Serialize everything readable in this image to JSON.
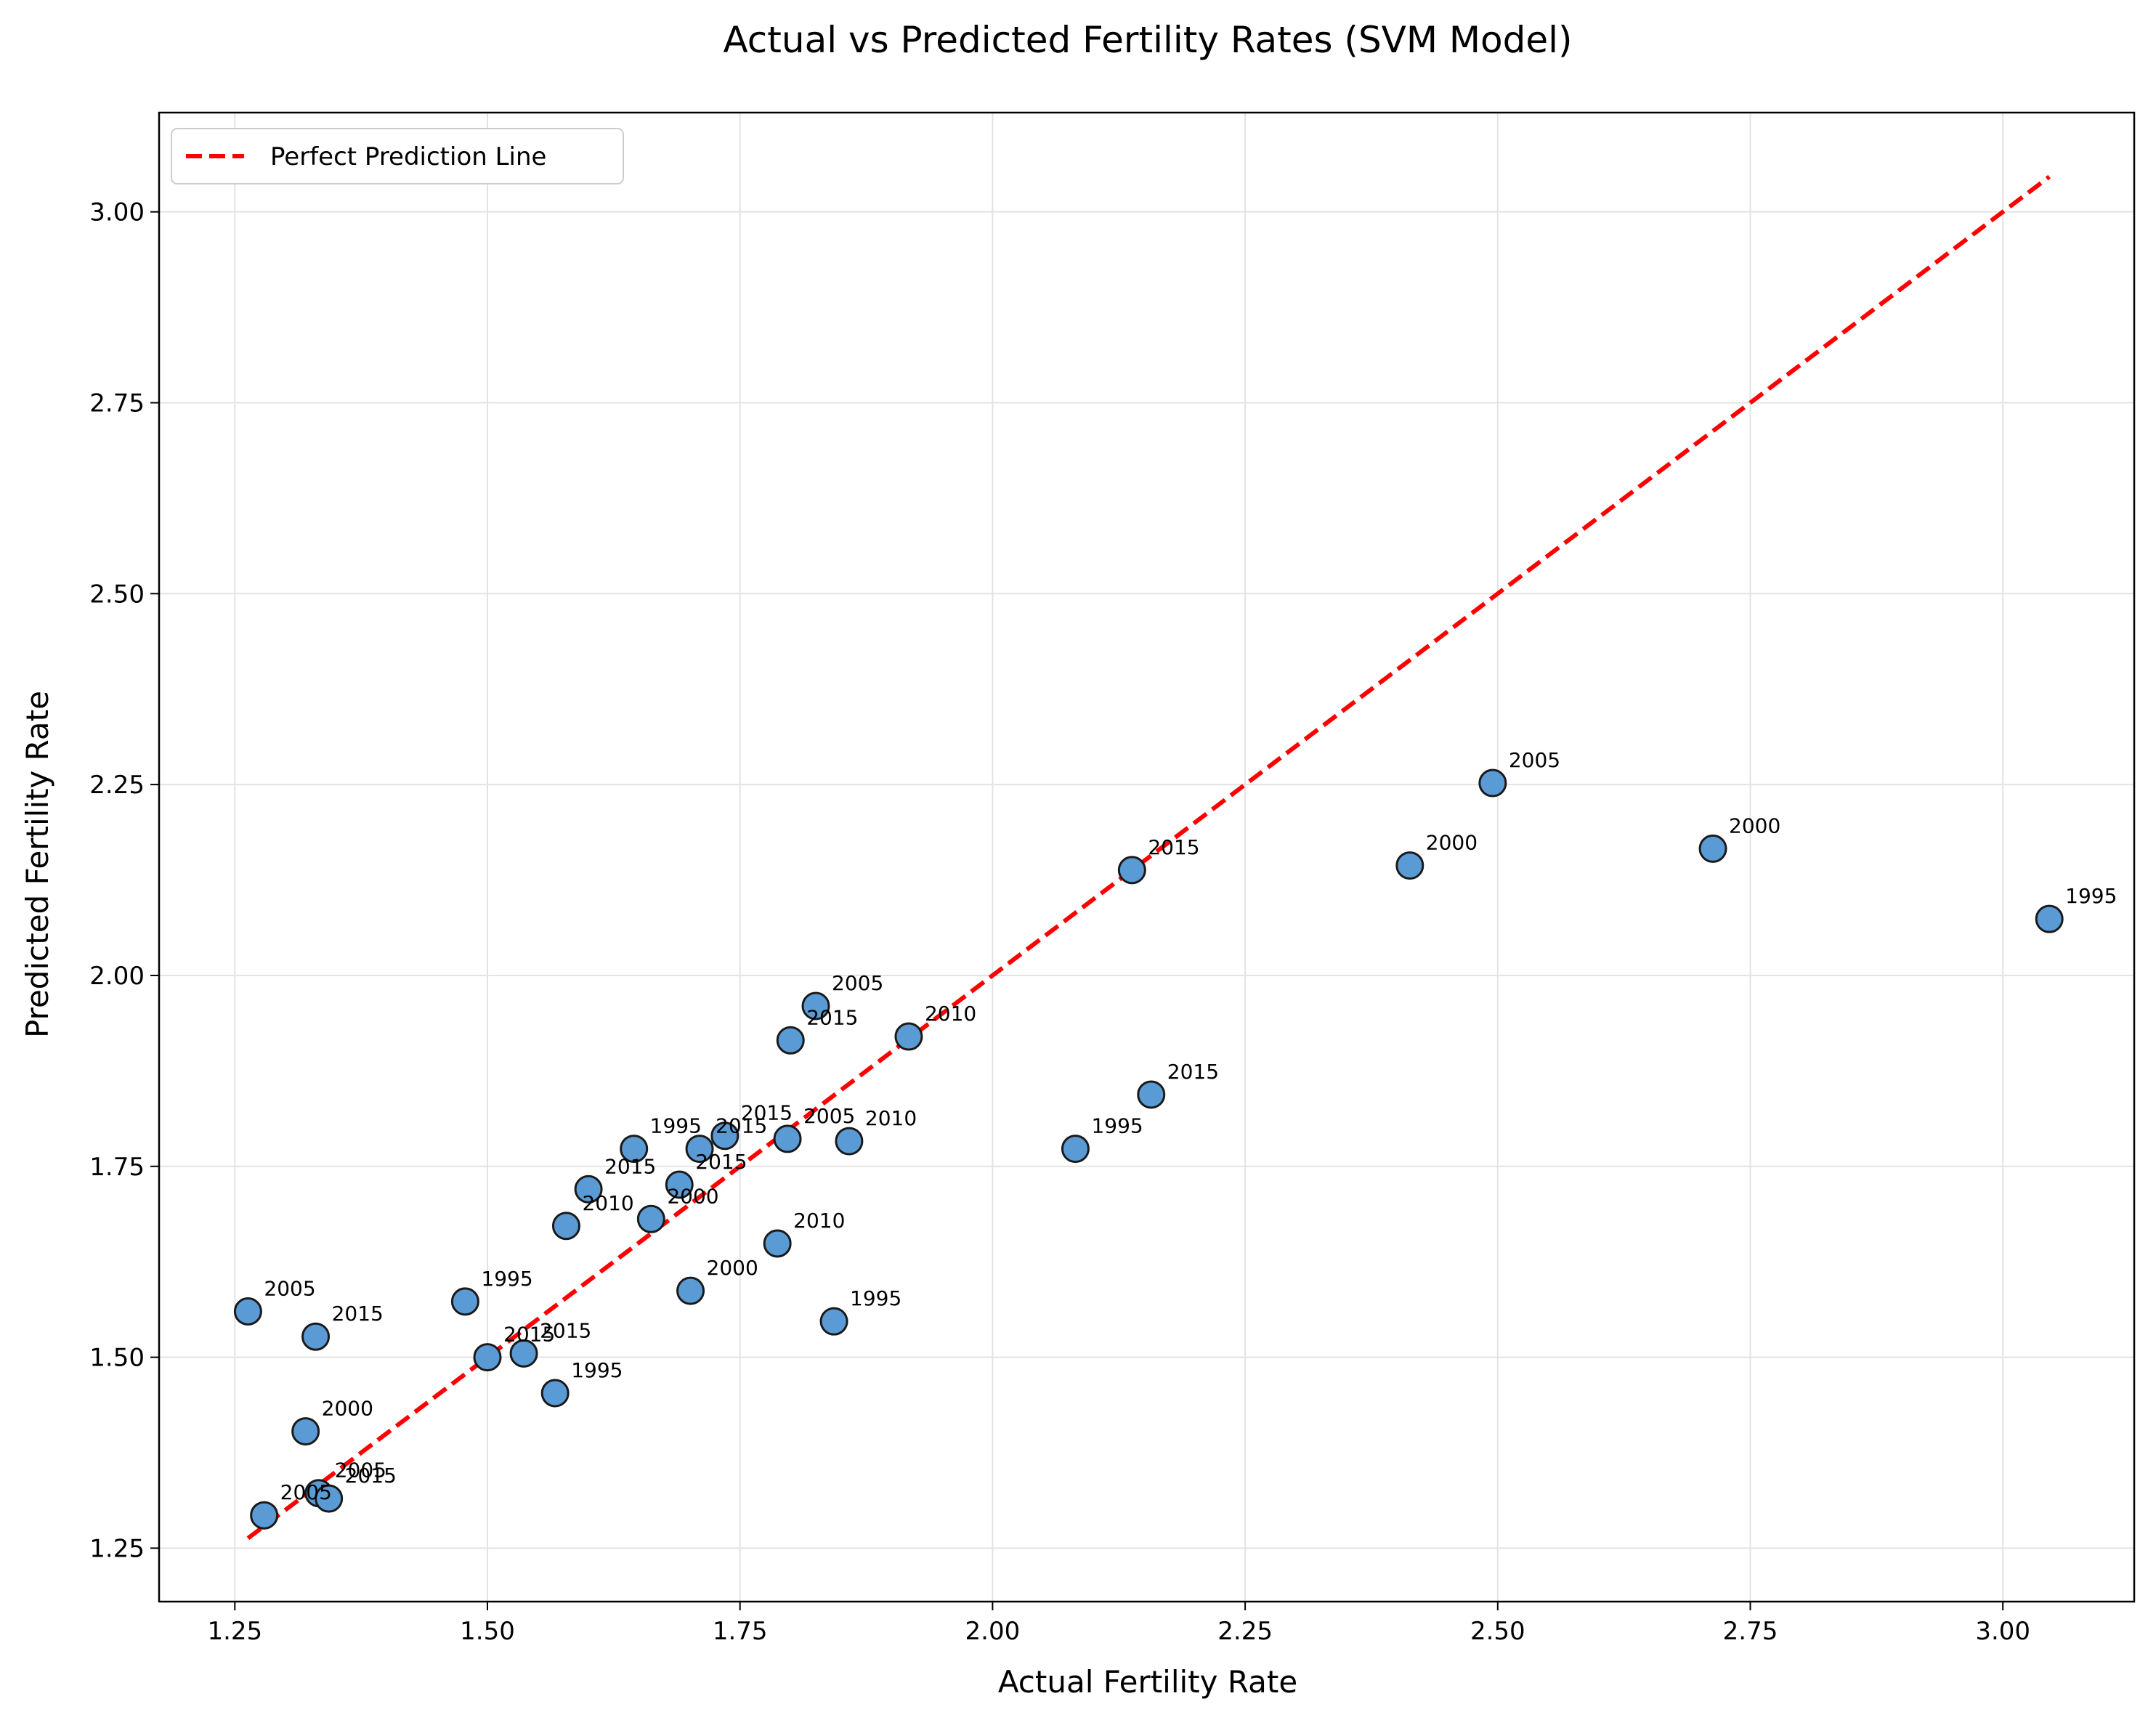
{
  "chart_data": {
    "type": "scatter",
    "title": "Actual vs Predicted Fertility Rates (SVM Model)",
    "xlabel": "Actual Fertility Rate",
    "ylabel": "Predicted Fertility Rate",
    "xlim": [
      1.175,
      3.13
    ],
    "ylim": [
      1.18,
      3.13
    ],
    "xticks": [
      1.25,
      1.5,
      1.75,
      2.0,
      2.25,
      2.5,
      2.75,
      3.0
    ],
    "xtick_labels": [
      "1.25",
      "1.50",
      "1.75",
      "2.00",
      "2.25",
      "2.50",
      "2.75",
      "3.00"
    ],
    "yticks": [
      1.25,
      1.5,
      1.75,
      2.0,
      2.25,
      2.5,
      2.75,
      3.0
    ],
    "ytick_labels": [
      "1.25",
      "1.50",
      "1.75",
      "2.00",
      "2.25",
      "2.50",
      "2.75",
      "3.00"
    ],
    "grid": true,
    "legend_position": "top-left",
    "legend": [
      "Perfect Prediction Line"
    ],
    "point_color": "#5b9bd5",
    "point_edge_color": "#1a1a1a",
    "line_color": "#ff0000",
    "perfect_line": {
      "name": "Perfect Prediction Line",
      "x": [
        1.263,
        3.046
      ],
      "y": [
        1.263,
        3.046
      ]
    },
    "points": [
      {
        "x": 1.263,
        "y": 1.56,
        "label": "2005"
      },
      {
        "x": 1.33,
        "y": 1.527,
        "label": "2015"
      },
      {
        "x": 1.32,
        "y": 1.403,
        "label": "2000"
      },
      {
        "x": 1.333,
        "y": 1.322,
        "label": "2005"
      },
      {
        "x": 1.343,
        "y": 1.315,
        "label": "2015"
      },
      {
        "x": 1.279,
        "y": 1.293,
        "label": "2005"
      },
      {
        "x": 1.478,
        "y": 1.573,
        "label": "1995"
      },
      {
        "x": 1.5,
        "y": 1.5,
        "label": "2015"
      },
      {
        "x": 1.536,
        "y": 1.505,
        "label": "2015"
      },
      {
        "x": 1.567,
        "y": 1.453,
        "label": "1995"
      },
      {
        "x": 1.578,
        "y": 1.672,
        "label": "2010"
      },
      {
        "x": 1.6,
        "y": 1.72,
        "label": "2015"
      },
      {
        "x": 1.645,
        "y": 1.773,
        "label": "1995"
      },
      {
        "x": 1.662,
        "y": 1.681,
        "label": "2000"
      },
      {
        "x": 1.69,
        "y": 1.726,
        "label": "2015"
      },
      {
        "x": 1.71,
        "y": 1.773,
        "label": "2015"
      },
      {
        "x": 1.735,
        "y": 1.79,
        "label": "2015"
      },
      {
        "x": 1.701,
        "y": 1.587,
        "label": "2000"
      },
      {
        "x": 1.787,
        "y": 1.649,
        "label": "2010"
      },
      {
        "x": 1.797,
        "y": 1.786,
        "label": "2005"
      },
      {
        "x": 1.8,
        "y": 1.915,
        "label": "2015"
      },
      {
        "x": 1.825,
        "y": 1.96,
        "label": "2005"
      },
      {
        "x": 1.858,
        "y": 1.783,
        "label": "2010"
      },
      {
        "x": 1.843,
        "y": 1.547,
        "label": "1995"
      },
      {
        "x": 1.917,
        "y": 1.92,
        "label": "2010"
      },
      {
        "x": 2.082,
        "y": 1.773,
        "label": "1995"
      },
      {
        "x": 2.138,
        "y": 2.138,
        "label": "2015"
      },
      {
        "x": 2.157,
        "y": 1.844,
        "label": "2015"
      },
      {
        "x": 2.413,
        "y": 2.144,
        "label": "2000"
      },
      {
        "x": 2.495,
        "y": 2.252,
        "label": "2005"
      },
      {
        "x": 2.713,
        "y": 2.166,
        "label": "2000"
      },
      {
        "x": 3.046,
        "y": 2.074,
        "label": "1995"
      }
    ]
  }
}
